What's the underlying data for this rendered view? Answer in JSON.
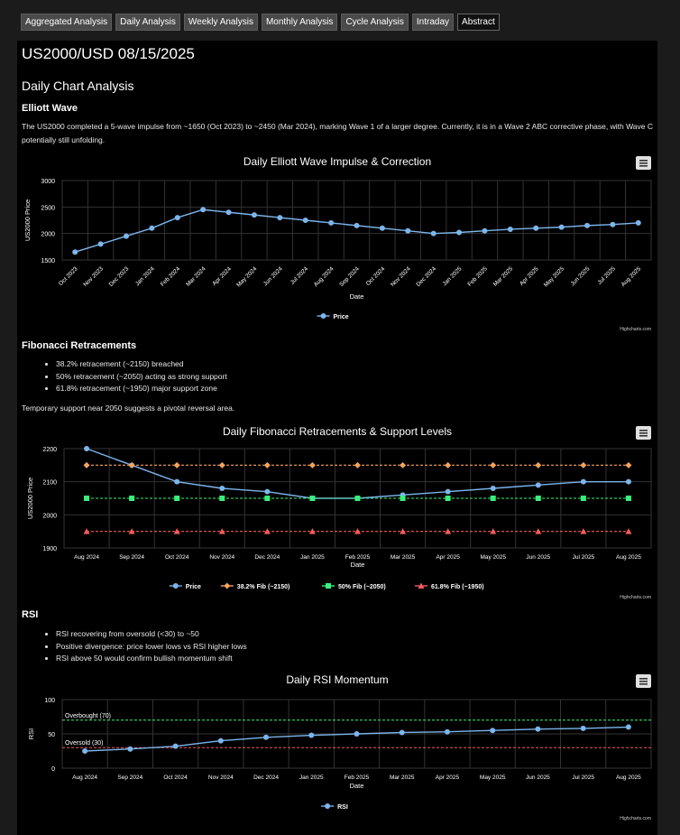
{
  "tabs": [
    "Aggregated Analysis",
    "Daily Analysis",
    "Weekly Analysis",
    "Monthly Analysis",
    "Cycle Analysis",
    "Intraday",
    "Abstract"
  ],
  "active_tab": "Abstract",
  "page_title": "US2000/USD 08/15/2025",
  "section_title": "Daily Chart Analysis",
  "elliott": {
    "heading": "Elliott Wave",
    "text": "The US2000 completed a 5-wave impulse from ~1650 (Oct 2023) to ~2450 (Mar 2024), marking Wave 1 of a larger degree. Currently, it is in a Wave 2 ABC corrective phase, with Wave C potentially still unfolding."
  },
  "fib": {
    "heading": "Fibonacci Retracements",
    "bullets": [
      "38.2% retracement (~2150) breached",
      "50% retracement (~2050) acting as strong support",
      "61.8% retracement (~1950) major support zone"
    ],
    "note": "Temporary support near 2050 suggests a pivotal reversal area."
  },
  "rsi": {
    "heading": "RSI",
    "bullets": [
      "RSI recovering from oversold (<30) to ~50",
      "Positive divergence: price lower lows vs RSI higher lows",
      "RSI above 50 would confirm bullish momentum shift"
    ]
  },
  "credit": "Highcharts.com",
  "colors": {
    "price": "#7cb5ec",
    "fib382": "#f7a35c",
    "fib50": "#38ef7d",
    "fib618": "#f45b5b",
    "overbought": "#38ef7d",
    "oversold": "#f45b5b",
    "grid": "#333333"
  },
  "chart_data": [
    {
      "type": "line",
      "title": "Daily Elliott Wave Impulse & Correction",
      "xlabel": "Date",
      "ylabel": "US2000 Price",
      "ylim": [
        1500,
        3000
      ],
      "yticks": [
        1500,
        2000,
        2500,
        3000
      ],
      "categories": [
        "Oct 2023",
        "Nov 2023",
        "Dec 2023",
        "Jan 2024",
        "Feb 2024",
        "Mar 2024",
        "Apr 2024",
        "May 2024",
        "Jun 2024",
        "Jul 2024",
        "Aug 2024",
        "Sep 2024",
        "Oct 2024",
        "Nov 2024",
        "Dec 2024",
        "Jan 2025",
        "Feb 2025",
        "Mar 2025",
        "Apr 2025",
        "May 2025",
        "Jun 2025",
        "Jul 2025",
        "Aug 2025"
      ],
      "series": [
        {
          "name": "Price",
          "values": [
            1650,
            1800,
            1950,
            2100,
            2300,
            2450,
            2400,
            2350,
            2300,
            2250,
            2200,
            2150,
            2100,
            2050,
            2000,
            2020,
            2050,
            2080,
            2100,
            2120,
            2150,
            2170,
            2200
          ]
        }
      ],
      "legend": "bottom-center",
      "grid": true
    },
    {
      "type": "line",
      "title": "Daily Fibonacci Retracements & Support Levels",
      "xlabel": "Date",
      "ylabel": "US2000 Price",
      "ylim": [
        1900,
        2200
      ],
      "yticks": [
        1900,
        2000,
        2100,
        2200
      ],
      "categories": [
        "Aug 2024",
        "Sep 2024",
        "Oct 2024",
        "Nov 2024",
        "Dec 2024",
        "Jan 2025",
        "Feb 2025",
        "Mar 2025",
        "Apr 2025",
        "May 2025",
        "Jun 2025",
        "Jul 2025",
        "Aug 2025"
      ],
      "series": [
        {
          "name": "Price",
          "values": [
            2200,
            2150,
            2100,
            2080,
            2070,
            2050,
            2050,
            2060,
            2070,
            2080,
            2090,
            2100,
            2100
          ]
        },
        {
          "name": "38.2% Fib (~2150)",
          "values": [
            2150,
            2150,
            2150,
            2150,
            2150,
            2150,
            2150,
            2150,
            2150,
            2150,
            2150,
            2150,
            2150
          ]
        },
        {
          "name": "50% Fib (~2050)",
          "values": [
            2050,
            2050,
            2050,
            2050,
            2050,
            2050,
            2050,
            2050,
            2050,
            2050,
            2050,
            2050,
            2050
          ]
        },
        {
          "name": "61.8% Fib (~1950)",
          "values": [
            1950,
            1950,
            1950,
            1950,
            1950,
            1950,
            1950,
            1950,
            1950,
            1950,
            1950,
            1950,
            1950
          ]
        }
      ],
      "legend": "bottom-center",
      "grid": true
    },
    {
      "type": "line",
      "title": "Daily RSI Momentum",
      "xlabel": "Date",
      "ylabel": "RSI",
      "ylim": [
        0,
        100
      ],
      "yticks": [
        0,
        50,
        100
      ],
      "categories": [
        "Aug 2024",
        "Sep 2024",
        "Oct 2024",
        "Nov 2024",
        "Dec 2024",
        "Jan 2025",
        "Feb 2025",
        "Mar 2025",
        "Apr 2025",
        "May 2025",
        "Jun 2025",
        "Jul 2025",
        "Aug 2025"
      ],
      "series": [
        {
          "name": "RSI",
          "values": [
            25,
            28,
            32,
            40,
            45,
            48,
            50,
            52,
            53,
            55,
            57,
            58,
            60
          ]
        }
      ],
      "plot_lines": [
        {
          "label": "Overbought (70)",
          "value": 70
        },
        {
          "label": "Oversold (30)",
          "value": 30
        }
      ],
      "legend": "bottom-center",
      "grid": true
    }
  ]
}
